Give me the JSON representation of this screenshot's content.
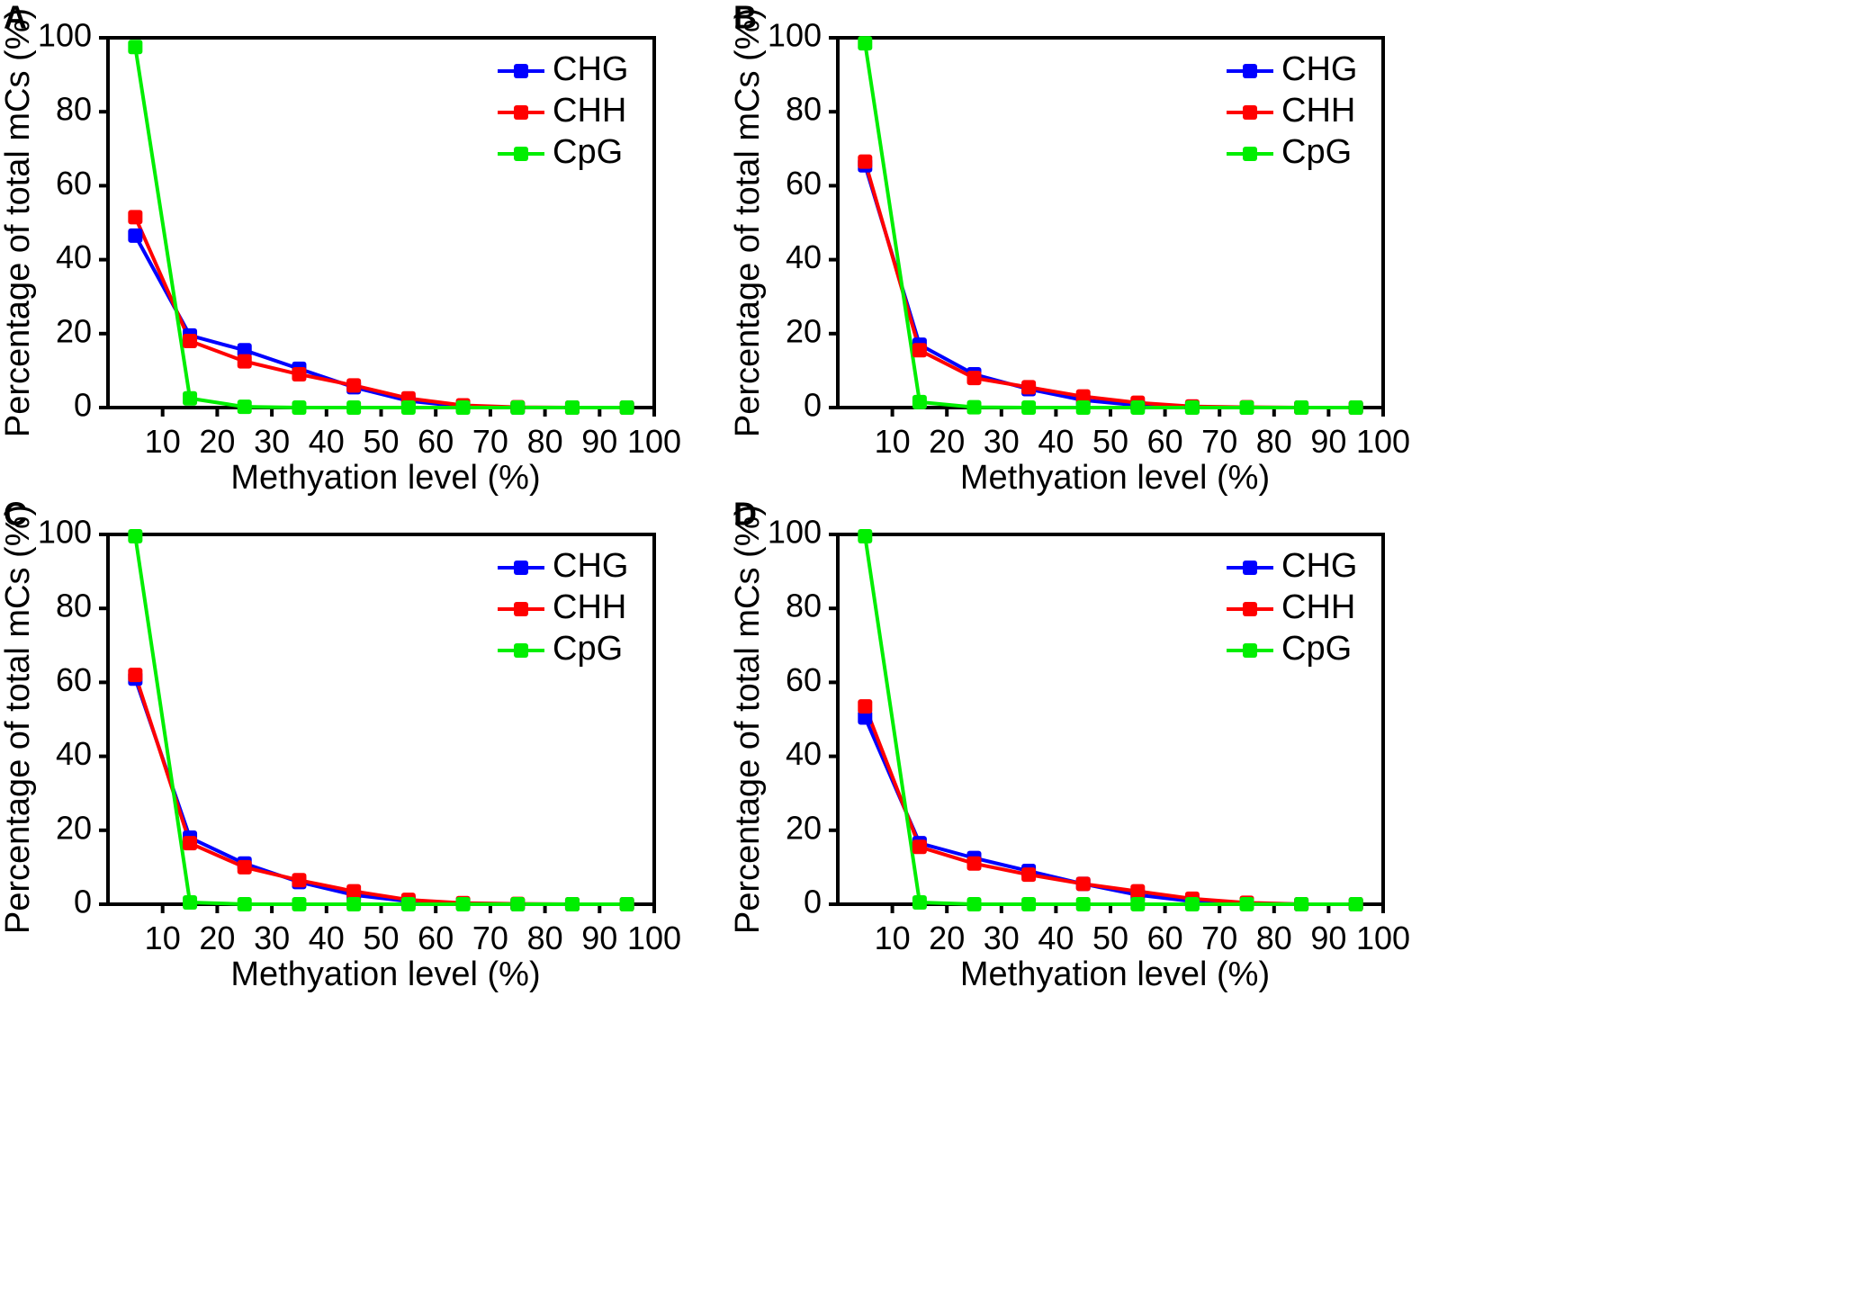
{
  "chart_data": [
    {
      "panel": "A",
      "type": "line",
      "xlabel": "Methyation level (%)",
      "ylabel": "Percentage of total mCs (%)",
      "xlim": [
        0,
        100
      ],
      "ylim": [
        0,
        100
      ],
      "xticks": [
        10,
        20,
        30,
        40,
        50,
        60,
        70,
        80,
        90,
        100
      ],
      "yticks": [
        0,
        20,
        40,
        60,
        80,
        100
      ],
      "x": [
        5,
        15,
        25,
        35,
        45,
        55,
        65,
        75,
        85,
        95
      ],
      "legend_position": "top-right",
      "series": [
        {
          "name": "CHG",
          "color": "#0000ff",
          "values": [
            46.5,
            19.5,
            15.5,
            10.5,
            5.5,
            1.8,
            0.3,
            0,
            0,
            0
          ]
        },
        {
          "name": "CHH",
          "color": "#ff0000",
          "values": [
            51.5,
            18,
            12.5,
            9,
            6,
            2.5,
            0.6,
            0.1,
            0,
            0
          ]
        },
        {
          "name": "CpG",
          "color": "#00ee00",
          "values": [
            97.5,
            2.5,
            0.2,
            0,
            0,
            0,
            0,
            0,
            0,
            0
          ]
        }
      ]
    },
    {
      "panel": "B",
      "type": "line",
      "xlabel": "Methyation level (%)",
      "ylabel": "Percentage of total mCs (%)",
      "xlim": [
        0,
        100
      ],
      "ylim": [
        0,
        100
      ],
      "xticks": [
        10,
        20,
        30,
        40,
        50,
        60,
        70,
        80,
        90,
        100
      ],
      "yticks": [
        0,
        20,
        40,
        60,
        80,
        100
      ],
      "x": [
        5,
        15,
        25,
        35,
        45,
        55,
        65,
        75,
        85,
        95
      ],
      "legend_position": "top-right",
      "series": [
        {
          "name": "CHG",
          "color": "#0000ff",
          "values": [
            65.5,
            17,
            9,
            5,
            2,
            0.6,
            0.1,
            0,
            0,
            0
          ]
        },
        {
          "name": "CHH",
          "color": "#ff0000",
          "values": [
            66.5,
            15.5,
            8,
            5.5,
            3,
            1.3,
            0.3,
            0.1,
            0,
            0
          ]
        },
        {
          "name": "CpG",
          "color": "#00ee00",
          "values": [
            98.5,
            1.5,
            0.1,
            0,
            0,
            0,
            0,
            0,
            0,
            0
          ]
        }
      ]
    },
    {
      "panel": "C",
      "type": "line",
      "xlabel": "Methyation level (%)",
      "ylabel": "Percentage of total mCs (%)",
      "xlim": [
        0,
        100
      ],
      "ylim": [
        0,
        100
      ],
      "xticks": [
        10,
        20,
        30,
        40,
        50,
        60,
        70,
        80,
        90,
        100
      ],
      "yticks": [
        0,
        20,
        40,
        60,
        80,
        100
      ],
      "x": [
        5,
        15,
        25,
        35,
        45,
        55,
        65,
        75,
        85,
        95
      ],
      "legend_position": "top-right",
      "series": [
        {
          "name": "CHG",
          "color": "#0000ff",
          "values": [
            61,
            18,
            11,
            6,
            2.5,
            0.8,
            0.2,
            0,
            0,
            0
          ]
        },
        {
          "name": "CHH",
          "color": "#ff0000",
          "values": [
            62,
            16.5,
            10,
            6.5,
            3.5,
            1.2,
            0.3,
            0.1,
            0,
            0
          ]
        },
        {
          "name": "CpG",
          "color": "#00ee00",
          "values": [
            99.5,
            0.5,
            0,
            0,
            0,
            0,
            0,
            0,
            0,
            0
          ]
        }
      ]
    },
    {
      "panel": "D",
      "type": "line",
      "xlabel": "Methyation level (%)",
      "ylabel": "Percentage of total mCs (%)",
      "xlim": [
        0,
        100
      ],
      "ylim": [
        0,
        100
      ],
      "xticks": [
        10,
        20,
        30,
        40,
        50,
        60,
        70,
        80,
        90,
        100
      ],
      "yticks": [
        0,
        20,
        40,
        60,
        80,
        100
      ],
      "x": [
        5,
        15,
        25,
        35,
        45,
        55,
        65,
        75,
        85,
        95
      ],
      "legend_position": "top-right",
      "series": [
        {
          "name": "CHG",
          "color": "#0000ff",
          "values": [
            50.5,
            16.5,
            12.5,
            9,
            5.5,
            2.5,
            0.8,
            0.2,
            0,
            0
          ]
        },
        {
          "name": "CHH",
          "color": "#ff0000",
          "values": [
            53.5,
            15.5,
            11,
            8,
            5.5,
            3.5,
            1.5,
            0.4,
            0,
            0
          ]
        },
        {
          "name": "CpG",
          "color": "#00ee00",
          "values": [
            99.5,
            0.5,
            0,
            0,
            0,
            0,
            0,
            0,
            0,
            0
          ]
        }
      ]
    }
  ]
}
